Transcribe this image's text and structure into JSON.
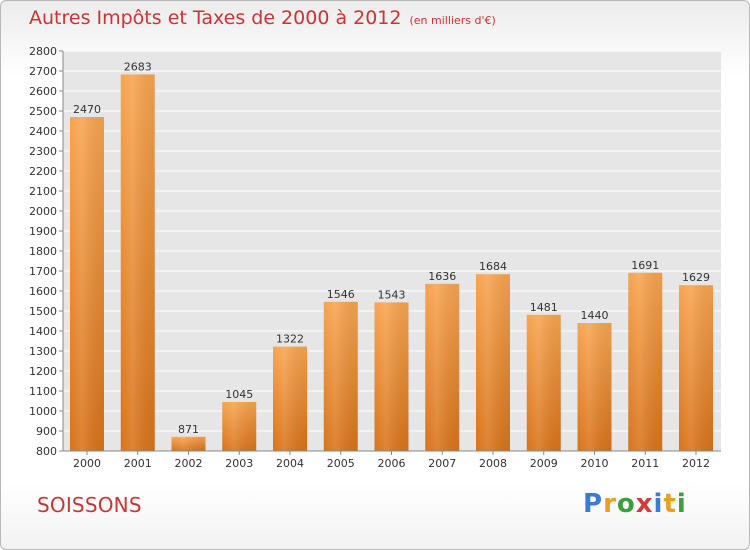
{
  "chart_data": {
    "type": "bar",
    "title": "Autres Impôts et Taxes de 2000 à 2012",
    "subtitle": "(en milliers d'€)",
    "categories": [
      "2000",
      "2001",
      "2002",
      "2003",
      "2004",
      "2005",
      "2006",
      "2007",
      "2008",
      "2009",
      "2010",
      "2011",
      "2012"
    ],
    "values": [
      2470,
      2683,
      871,
      1045,
      1322,
      1546,
      1543,
      1636,
      1684,
      1481,
      1440,
      1691,
      1629
    ],
    "xlabel": "",
    "ylabel": "",
    "ylim": [
      800,
      2800
    ],
    "yticks": [
      800,
      900,
      1000,
      1100,
      1200,
      1300,
      1400,
      1500,
      1600,
      1700,
      1800,
      1900,
      2000,
      2100,
      2200,
      2300,
      2400,
      2500,
      2600,
      2700,
      2800
    ],
    "grid": true,
    "bar_color": "#f08a24",
    "data_labels": true
  },
  "footer": {
    "city": "SOISSONS",
    "logo_letters": [
      {
        "ch": "P",
        "color": "#3a7bd5"
      },
      {
        "ch": "r",
        "color": "#e8a020"
      },
      {
        "ch": "o",
        "color": "#3aa13a"
      },
      {
        "ch": "x",
        "color": "#d43a3a"
      },
      {
        "ch": "i",
        "color": "#3a7bd5"
      },
      {
        "ch": "t",
        "color": "#e8a020"
      },
      {
        "ch": "i",
        "color": "#3aa13a"
      }
    ]
  },
  "colors": {
    "title": "#cc3333",
    "plot_background": "#e8e8e8",
    "grid": "#ffffff"
  }
}
